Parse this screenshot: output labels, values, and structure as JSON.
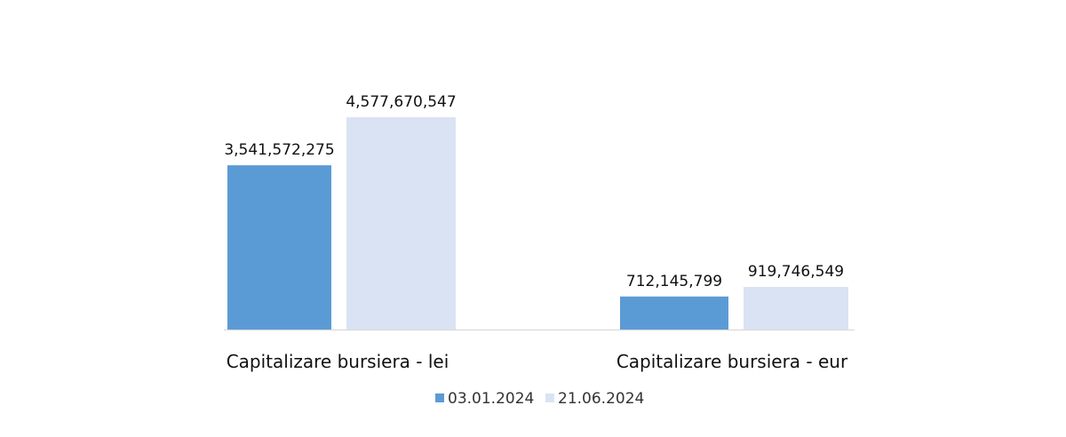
{
  "chart_data": {
    "type": "bar",
    "categories": [
      "Capitalizare bursiera - lei",
      "Capitalizare bursiera - eur"
    ],
    "series": [
      {
        "name": "03.01.2024",
        "color": "#5b9bd5",
        "values": [
          3541572275,
          712145799
        ],
        "labels": [
          "3,541,572,275",
          "712,145,799"
        ]
      },
      {
        "name": "21.06.2024",
        "color": "#dae3f3",
        "values": [
          4577670547,
          919746549
        ],
        "labels": [
          "4,577,670,547",
          "919,746,549"
        ]
      }
    ],
    "ylim": [
      0,
      5000000000
    ],
    "grid": false,
    "y_axis_visible": false,
    "legend_position": "bottom-center",
    "axis_color": "#d9d9d9"
  }
}
